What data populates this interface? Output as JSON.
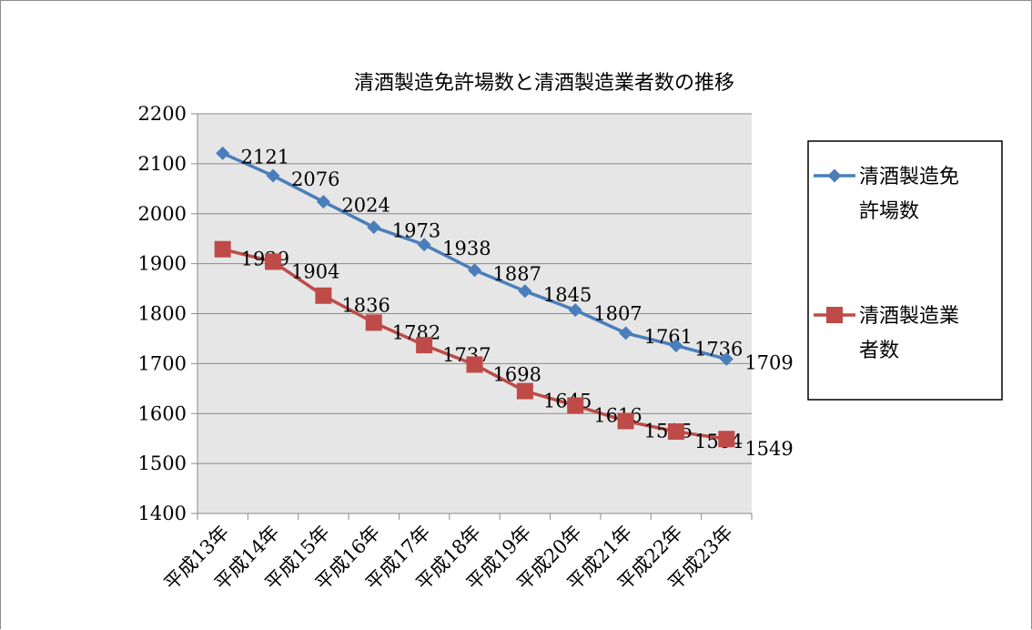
{
  "chart_data": {
    "type": "line",
    "title": "清酒製造免許場数と清酒製造業者数の推移",
    "categories": [
      "平成13年",
      "平成14年",
      "平成15年",
      "平成16年",
      "平成17年",
      "平成18年",
      "平成19年",
      "平成20年",
      "平成21年",
      "平成22年",
      "平成23年"
    ],
    "series": [
      {
        "name_lines": [
          "清酒製造免",
          "許場数"
        ],
        "values": [
          2121,
          2076,
          2024,
          1973,
          1938,
          1887,
          1845,
          1807,
          1761,
          1736,
          1709
        ],
        "color": "#4a7ebb",
        "marker": "diamond"
      },
      {
        "name_lines": [
          "清酒製造業",
          "者数"
        ],
        "values": [
          1929,
          1904,
          1836,
          1782,
          1737,
          1698,
          1645,
          1616,
          1585,
          1564,
          1549
        ],
        "color": "#be4b48",
        "marker": "square"
      }
    ],
    "ylim": [
      1400,
      2200
    ],
    "yticks": [
      1400,
      1500,
      1600,
      1700,
      1800,
      1900,
      2000,
      2100,
      2200
    ],
    "grid": true,
    "plot_background": "#e6e6e6",
    "data_labels": true,
    "legend_position": "right",
    "xlabel": "",
    "ylabel": ""
  }
}
